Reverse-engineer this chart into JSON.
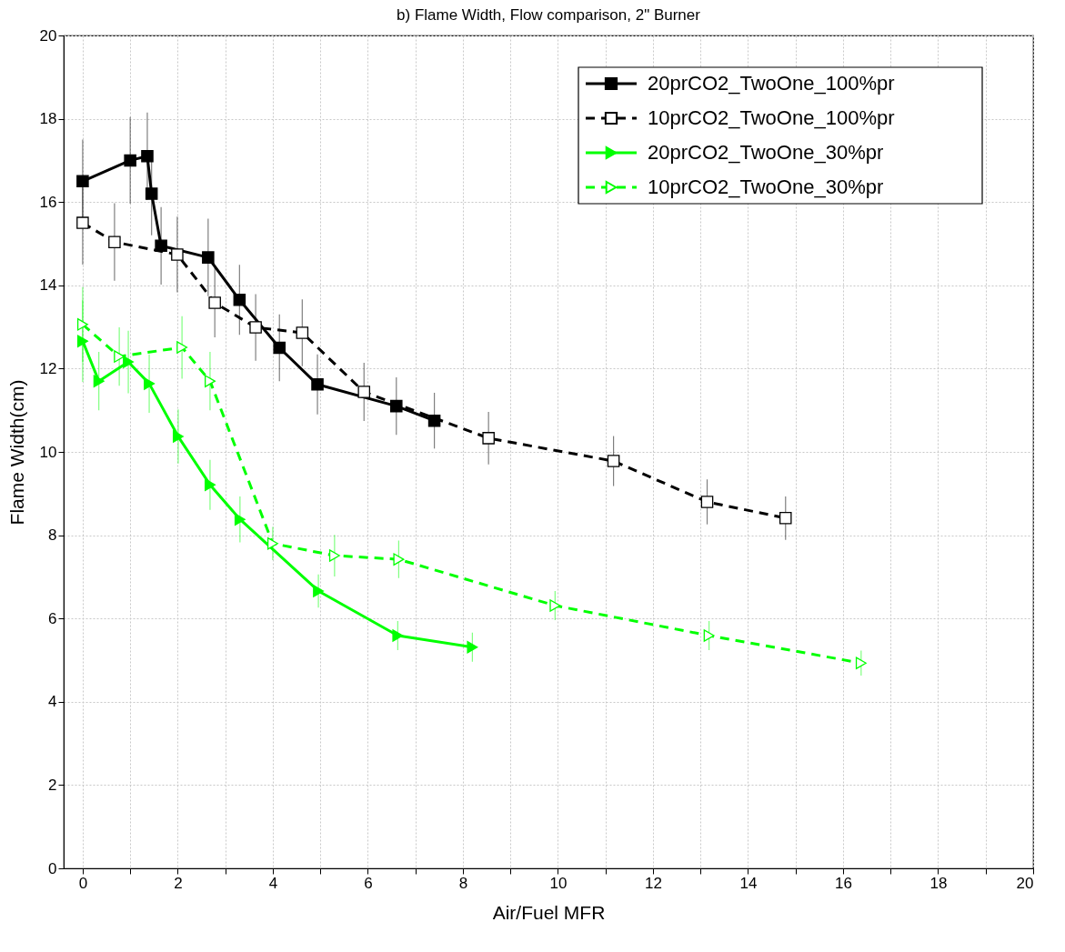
{
  "chart_data": {
    "type": "line",
    "title": "b) Flame Width, Flow comparison, 2\" Burner",
    "xlabel": "Air/Fuel MFR",
    "ylabel": "Flame Width(cm)",
    "xlim": [
      -0.4,
      20
    ],
    "ylim": [
      0,
      20
    ],
    "xticks": [
      0,
      {
        "value": 1,
        "label": null
      },
      2,
      {
        "value": 3,
        "label": null
      },
      4,
      {
        "value": 5,
        "label": null
      },
      6,
      {
        "value": 7,
        "label": null
      },
      8,
      {
        "value": 9,
        "label": null
      },
      10,
      {
        "value": 11,
        "label": null
      },
      12,
      {
        "value": 13,
        "label": null
      },
      14,
      {
        "value": 15,
        "label": null
      },
      16,
      {
        "value": 17,
        "label": null
      },
      18,
      {
        "value": 19,
        "label": null
      },
      20
    ],
    "yticks": [
      0,
      2,
      4,
      6,
      8,
      10,
      12,
      14,
      16,
      18,
      20
    ],
    "grid": true,
    "legend": "top right",
    "series": [
      {
        "name": "20prCO2_TwoOne_100%pr",
        "color": "#000000",
        "marker": "square",
        "line_style": "solid",
        "x": [
          0,
          1.0,
          1.36,
          1.45,
          1.65,
          2.64,
          3.3,
          4.14,
          4.94,
          6.6,
          7.4
        ],
        "values": [
          16.5,
          17.0,
          17.1,
          16.2,
          14.95,
          14.67,
          13.65,
          12.5,
          11.62,
          11.1,
          10.75
        ],
        "errors": [
          1.0,
          1.04,
          1.05,
          1.0,
          0.93,
          0.93,
          0.84,
          0.8,
          0.72,
          0.69,
          0.67
        ]
      },
      {
        "name": "10prCO2_TwoOne_100%pr",
        "color": "#000000",
        "marker": "square",
        "line_style": "dashed",
        "x": [
          0,
          0.67,
          1.99,
          2.78,
          3.64,
          4.62,
          5.92,
          8.54,
          11.17,
          13.14,
          14.79
        ],
        "values": [
          15.5,
          15.04,
          14.74,
          13.58,
          12.99,
          12.86,
          11.44,
          10.33,
          9.78,
          8.8,
          8.41
        ],
        "errors": [
          1.0,
          0.93,
          0.91,
          0.83,
          0.8,
          0.8,
          0.7,
          0.63,
          0.6,
          0.54,
          0.52
        ]
      },
      {
        "name": "20prCO2_TwoOne_30%pr",
        "color": "#00ff00",
        "marker": "triangle",
        "line_style": "solid",
        "x": [
          0,
          0.34,
          0.96,
          1.4,
          2.01,
          2.68,
          3.31,
          4.96,
          6.63,
          8.2
        ],
        "values": [
          12.66,
          11.7,
          12.16,
          11.64,
          10.37,
          9.21,
          8.38,
          6.66,
          5.59,
          5.31
        ],
        "errors": [
          0.98,
          0.7,
          0.75,
          0.7,
          0.65,
          0.6,
          0.55,
          0.4,
          0.35,
          0.35
        ]
      },
      {
        "name": "10prCO2_TwoOne_30%pr",
        "color": "#00ff00",
        "marker": "triangle",
        "line_style": "dashed",
        "x": [
          0,
          0.77,
          2.09,
          2.68,
          4.0,
          5.3,
          6.65,
          9.94,
          13.18,
          16.38
        ],
        "values": [
          13.06,
          12.29,
          12.51,
          11.7,
          7.8,
          7.51,
          7.42,
          6.31,
          5.59,
          4.93
        ],
        "errors": [
          0.9,
          0.7,
          0.75,
          0.7,
          0.4,
          0.5,
          0.45,
          0.35,
          0.35,
          0.3
        ]
      }
    ]
  }
}
